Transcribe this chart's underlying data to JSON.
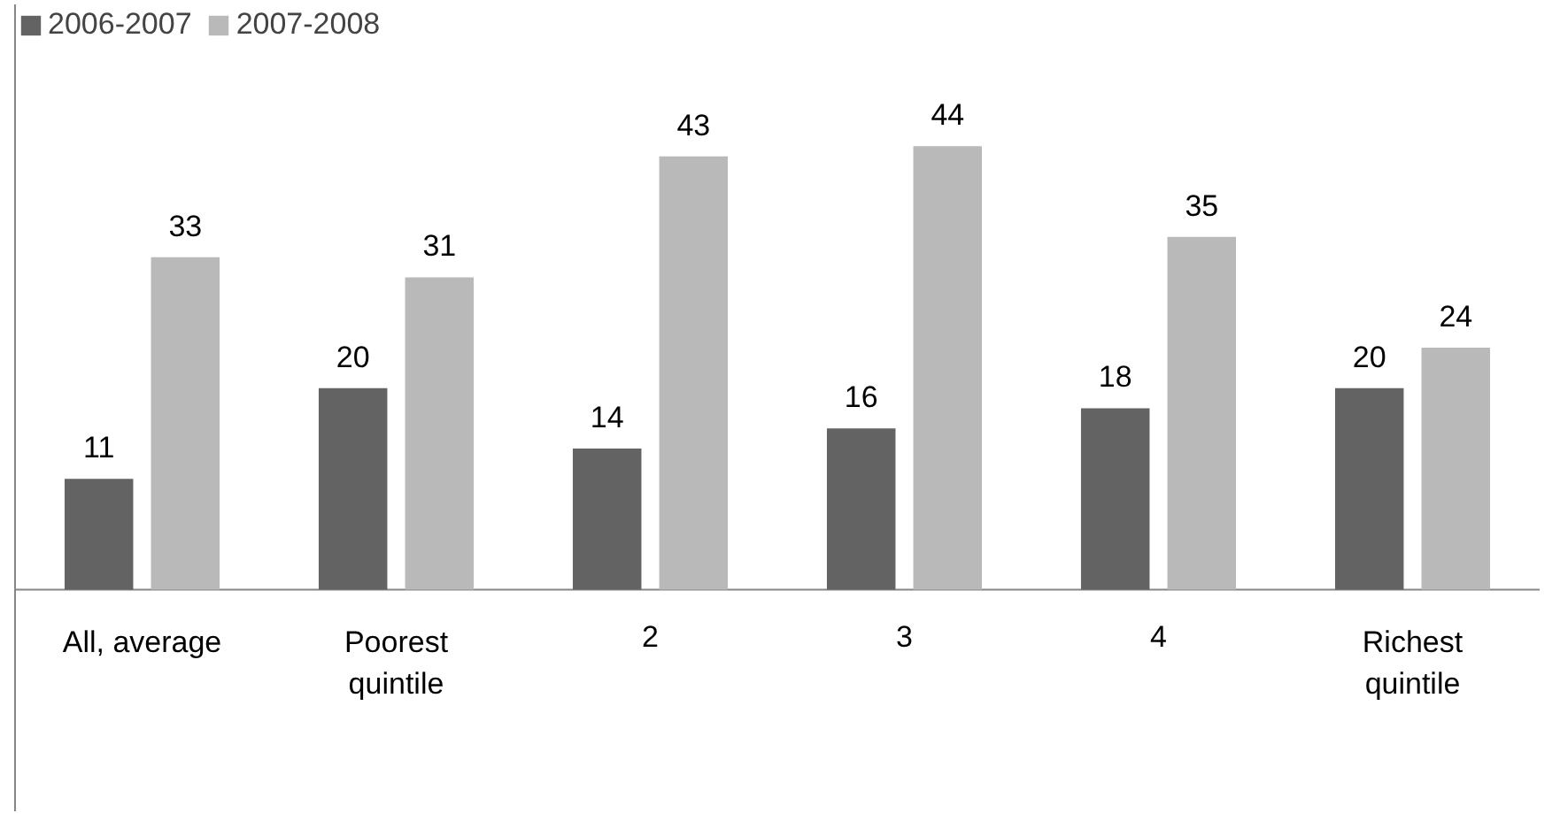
{
  "chart_data": {
    "type": "bar",
    "categories": [
      "All, average",
      "Poorest\nquintile",
      "2",
      "3",
      "4",
      "Richest\nquintile"
    ],
    "series": [
      {
        "name": "2006-2007",
        "color": "#636363",
        "values": [
          11,
          20,
          14,
          16,
          18,
          20
        ]
      },
      {
        "name": "2007-2008",
        "color": "#b9b9b9",
        "values": [
          33,
          31,
          43,
          44,
          35,
          24
        ]
      }
    ],
    "data_labels": true,
    "legend": "top left",
    "grid": false
  }
}
